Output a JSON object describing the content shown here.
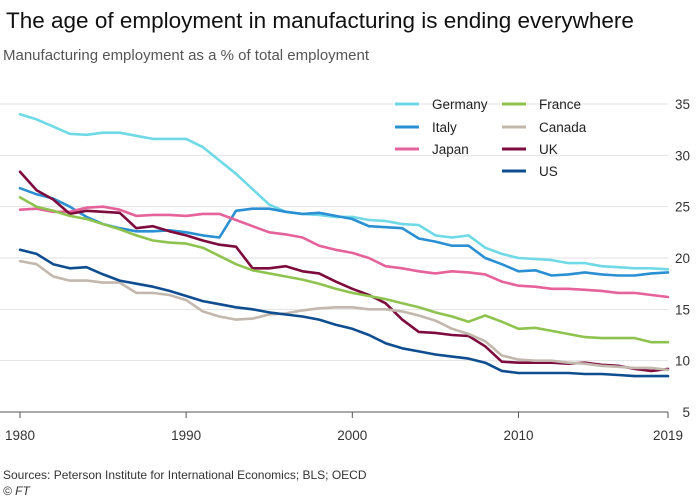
{
  "chart_data": {
    "type": "line",
    "title": "The age of employment in manufacturing is ending everywhere",
    "subtitle": "Manufacturing employment as a % of total employment",
    "xlabel": "",
    "ylabel": "",
    "xlim": [
      1980,
      2019
    ],
    "ylim": [
      5,
      36
    ],
    "x_ticks": [
      1980,
      1990,
      2000,
      2010,
      2019
    ],
    "y_ticks": [
      5,
      10,
      15,
      20,
      25,
      30,
      35
    ],
    "grid": true,
    "legend_position": "top-right",
    "x": [
      1980,
      1981,
      1982,
      1983,
      1984,
      1985,
      1986,
      1987,
      1988,
      1989,
      1990,
      1991,
      1992,
      1993,
      1994,
      1995,
      1996,
      1997,
      1998,
      1999,
      2000,
      2001,
      2002,
      2003,
      2004,
      2005,
      2006,
      2007,
      2008,
      2009,
      2010,
      2011,
      2012,
      2013,
      2014,
      2015,
      2016,
      2017,
      2018,
      2019
    ],
    "series": [
      {
        "name": "Germany",
        "color": "#6fd9e6",
        "values": [
          34.0,
          33.5,
          32.8,
          32.1,
          32.0,
          32.2,
          32.2,
          31.9,
          31.6,
          31.6,
          31.6,
          30.8,
          29.5,
          28.2,
          26.7,
          25.2,
          24.5,
          24.3,
          24.2,
          24.0,
          24.0,
          23.7,
          23.6,
          23.3,
          23.2,
          22.2,
          22.0,
          22.2,
          21.0,
          20.4,
          20.0,
          19.9,
          19.8,
          19.5,
          19.5,
          19.2,
          19.1,
          19.0,
          19.0,
          18.9
        ]
      },
      {
        "name": "Italy",
        "color": "#2b90d3",
        "values": [
          26.8,
          26.2,
          25.8,
          25.0,
          24.0,
          23.3,
          22.9,
          22.6,
          22.6,
          22.7,
          22.5,
          22.2,
          22.0,
          24.6,
          24.8,
          24.8,
          24.5,
          24.3,
          24.4,
          24.1,
          23.8,
          23.1,
          23.0,
          22.9,
          21.9,
          21.6,
          21.2,
          21.2,
          20.0,
          19.4,
          18.7,
          18.8,
          18.3,
          18.4,
          18.6,
          18.4,
          18.3,
          18.3,
          18.5,
          18.6
        ]
      },
      {
        "name": "Japan",
        "color": "#e5629b",
        "values": [
          24.7,
          24.8,
          24.5,
          24.5,
          24.9,
          25.0,
          24.7,
          24.1,
          24.2,
          24.2,
          24.1,
          24.3,
          24.3,
          23.7,
          23.1,
          22.5,
          22.3,
          22.0,
          21.2,
          20.8,
          20.5,
          20.0,
          19.2,
          19.0,
          18.7,
          18.5,
          18.7,
          18.6,
          18.4,
          17.7,
          17.3,
          17.2,
          17.0,
          17.0,
          16.9,
          16.8,
          16.6,
          16.6,
          16.4,
          16.2
        ]
      },
      {
        "name": "UK",
        "color": "#7d0b3e",
        "values": [
          28.4,
          26.6,
          25.7,
          24.3,
          24.6,
          24.5,
          24.4,
          22.9,
          23.1,
          22.6,
          22.2,
          21.7,
          21.3,
          21.1,
          19.0,
          19.0,
          19.2,
          18.7,
          18.5,
          17.7,
          17.0,
          16.4,
          15.6,
          14.0,
          12.8,
          12.7,
          12.5,
          12.4,
          11.4,
          9.9,
          9.8,
          9.8,
          9.8,
          9.7,
          9.8,
          9.6,
          9.5,
          9.2,
          9.0,
          9.2
        ]
      },
      {
        "name": "France",
        "color": "#8fc34f",
        "values": [
          25.9,
          25.0,
          24.6,
          24.1,
          23.8,
          23.3,
          22.8,
          22.2,
          21.7,
          21.5,
          21.4,
          21.0,
          20.2,
          19.4,
          18.8,
          18.5,
          18.2,
          17.9,
          17.5,
          17.0,
          16.6,
          16.3,
          16.0,
          15.6,
          15.2,
          14.7,
          14.3,
          13.8,
          14.4,
          13.8,
          13.1,
          13.2,
          12.9,
          12.6,
          12.3,
          12.2,
          12.2,
          12.2,
          11.8,
          11.8
        ]
      },
      {
        "name": "Canada",
        "color": "#c3b8ad",
        "values": [
          19.7,
          19.4,
          18.2,
          17.8,
          17.8,
          17.6,
          17.6,
          16.6,
          16.6,
          16.4,
          15.9,
          14.8,
          14.3,
          14.0,
          14.1,
          14.5,
          14.6,
          14.9,
          15.1,
          15.2,
          15.2,
          15.0,
          15.0,
          14.8,
          14.4,
          13.9,
          13.1,
          12.6,
          11.9,
          10.5,
          10.1,
          10.0,
          10.0,
          9.8,
          9.7,
          9.5,
          9.4,
          9.3,
          9.3,
          9.1
        ]
      },
      {
        "name": "US",
        "color": "#0e4d8f",
        "values": [
          20.8,
          20.4,
          19.4,
          19.0,
          19.1,
          18.4,
          17.8,
          17.5,
          17.2,
          16.8,
          16.3,
          15.8,
          15.5,
          15.2,
          15.0,
          14.7,
          14.5,
          14.3,
          14.0,
          13.5,
          13.1,
          12.5,
          11.7,
          11.2,
          10.9,
          10.6,
          10.4,
          10.2,
          9.8,
          9.0,
          8.8,
          8.8,
          8.8,
          8.8,
          8.7,
          8.7,
          8.6,
          8.5,
          8.5,
          8.5
        ]
      }
    ]
  },
  "footer": {
    "source": "Sources: Peterson Institute for International Economics; BLS; OECD",
    "credit": "© FT"
  }
}
